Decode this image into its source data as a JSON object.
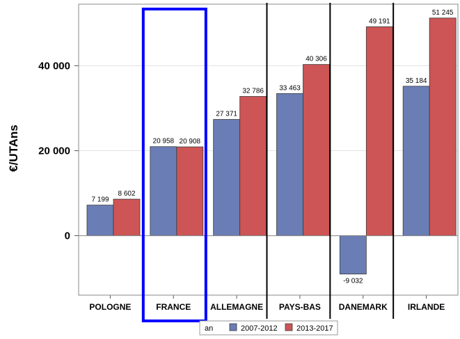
{
  "chart_data": {
    "type": "bar",
    "ylabel": "€/UTAns",
    "ylim": [
      -14000,
      54500
    ],
    "yticks": [
      0,
      20000,
      40000
    ],
    "ytick_labels": [
      "0",
      "20 000",
      "40 000"
    ],
    "categories": [
      "POLOGNE",
      "FRANCE",
      "ALLEMAGNE",
      "PAYS-BAS",
      "DANEMARK",
      "IRLANDE"
    ],
    "series": [
      {
        "name": "2007-2012",
        "color": "#6a7db5",
        "values": [
          7199,
          20958,
          27371,
          33463,
          -9032,
          35184
        ],
        "labels": [
          "7 199",
          "20 958",
          "27 371",
          "33 463",
          "-9 032",
          "35 184"
        ]
      },
      {
        "name": "2013-2017",
        "color": "#cd5555",
        "values": [
          8602,
          20908,
          32786,
          40306,
          49191,
          51245
        ],
        "labels": [
          "8 602",
          "20 908",
          "32 786",
          "40 306",
          "49 191",
          "51 245"
        ]
      }
    ],
    "legend": {
      "title": "an",
      "position": "bottom"
    },
    "highlight_category": "FRANCE",
    "highlight_color": "#0000ff",
    "separator_lines_before": [
      "PAYS-BAS",
      "DANEMARK",
      "IRLANDE"
    ],
    "grid": true
  }
}
